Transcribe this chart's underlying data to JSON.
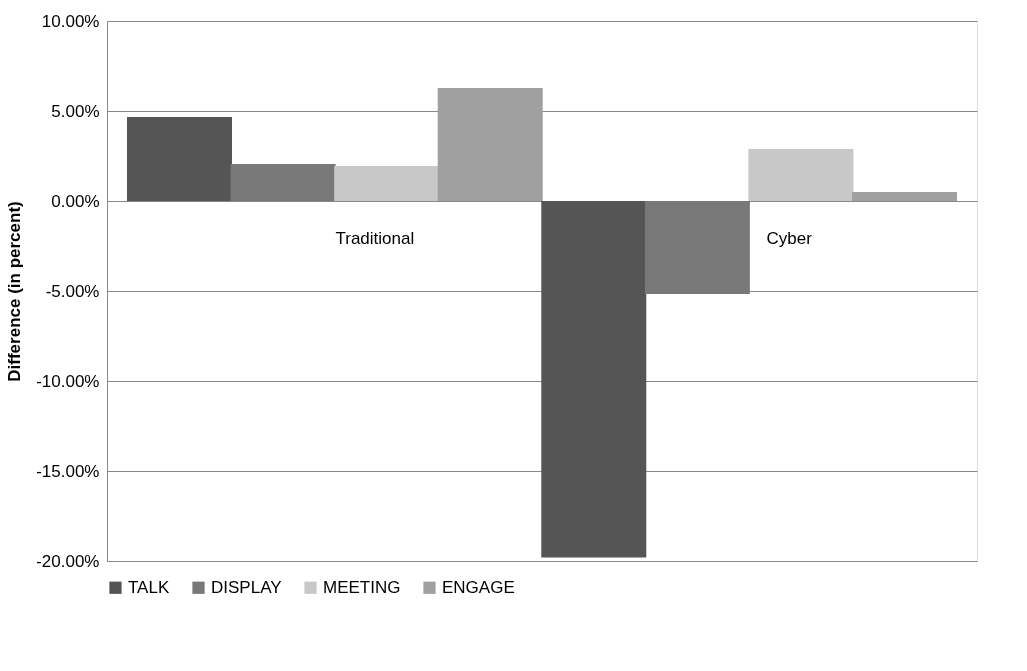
{
  "chart_data": {
    "type": "bar",
    "ylabel": "Difference (in percent)",
    "categories": [
      "Traditional",
      "Cyber"
    ],
    "series": [
      {
        "name": "TALK",
        "color": "#555555",
        "values": [
          4.67,
          -19.8
        ]
      },
      {
        "name": "DISPLAY",
        "color": "#787878",
        "values": [
          2.05,
          -5.17
        ]
      },
      {
        "name": "MEETING",
        "color": "#c8c8c8",
        "values": [
          1.94,
          2.89
        ]
      },
      {
        "name": "ENGAGE",
        "color": "#a0a0a0",
        "values": [
          6.28,
          0.5
        ]
      }
    ],
    "ylim": [
      -20,
      10
    ],
    "yticks": [
      {
        "value": -20,
        "label": "-20.00%"
      },
      {
        "value": -15,
        "label": "-15.00%"
      },
      {
        "value": -10,
        "label": "-10.00%"
      },
      {
        "value": -5,
        "label": "-5.00%"
      },
      {
        "value": 0,
        "label": "0.00%"
      },
      {
        "value": 5,
        "label": "5.00%"
      },
      {
        "value": 10,
        "label": "10.00%"
      }
    ],
    "grid": "y",
    "legend": "bottom"
  }
}
